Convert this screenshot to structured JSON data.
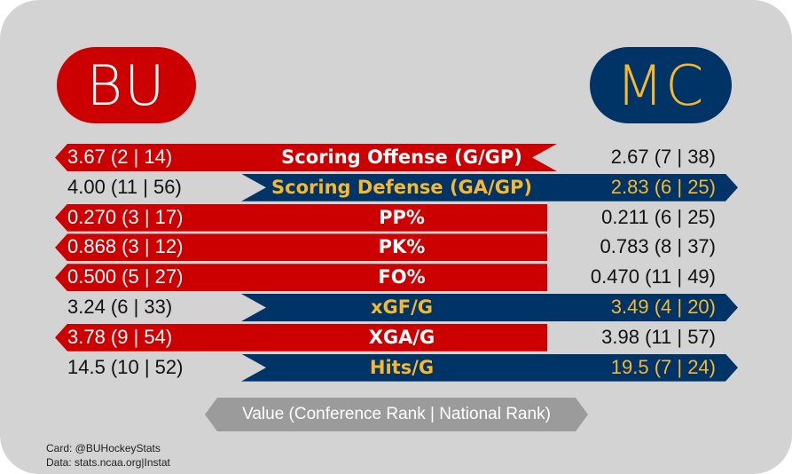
{
  "teams": {
    "home": {
      "abbr": "BU",
      "color": "#cc0000",
      "text_color": "#ffffff"
    },
    "away": {
      "abbr": "MC",
      "color": "#003366",
      "text_color": "#f5b82e"
    }
  },
  "colors": {
    "background": "#d3d3d3",
    "home_band": "#cc0000",
    "away_band": "#003366",
    "home_label_text": "#ffffff",
    "away_label_text": "#f5b82e",
    "legend": "#9b9b9b"
  },
  "stats": [
    {
      "label": "Scoring Offense (G/GP)",
      "home": "3.67 (2 | 14)",
      "away": "2.67 (7 | 38)",
      "winner": "home"
    },
    {
      "label": "Scoring Defense (GA/GP)",
      "home": "4.00 (11 | 56)",
      "away": "2.83 (6 | 25)",
      "winner": "away"
    },
    {
      "label": "PP%",
      "home": "0.270 (3 | 17)",
      "away": "0.211 (6 | 25)",
      "winner": "home"
    },
    {
      "label": "PK%",
      "home": "0.868 (3 | 12)",
      "away": "0.783 (8 | 37)",
      "winner": "home"
    },
    {
      "label": "FO%",
      "home": "0.500 (5 | 27)",
      "away": "0.470 (11 | 49)",
      "winner": "home"
    },
    {
      "label": "xGF/G",
      "home": "3.24 (6 | 33)",
      "away": "3.49 (4 | 20)",
      "winner": "away"
    },
    {
      "label": "XGA/G",
      "home": "3.78 (9 | 54)",
      "away": "3.98 (11 | 57)",
      "winner": "home"
    },
    {
      "label": "Hits/G",
      "home": "14.5 (10 | 52)",
      "away": "19.5 (7 | 24)",
      "winner": "away"
    }
  ],
  "legend": {
    "text": "Value (Conference Rank | National Rank)"
  },
  "credits": {
    "card": "Card: @BUHockeyStats",
    "data": "Data: stats.ncaa.org|Instat"
  }
}
